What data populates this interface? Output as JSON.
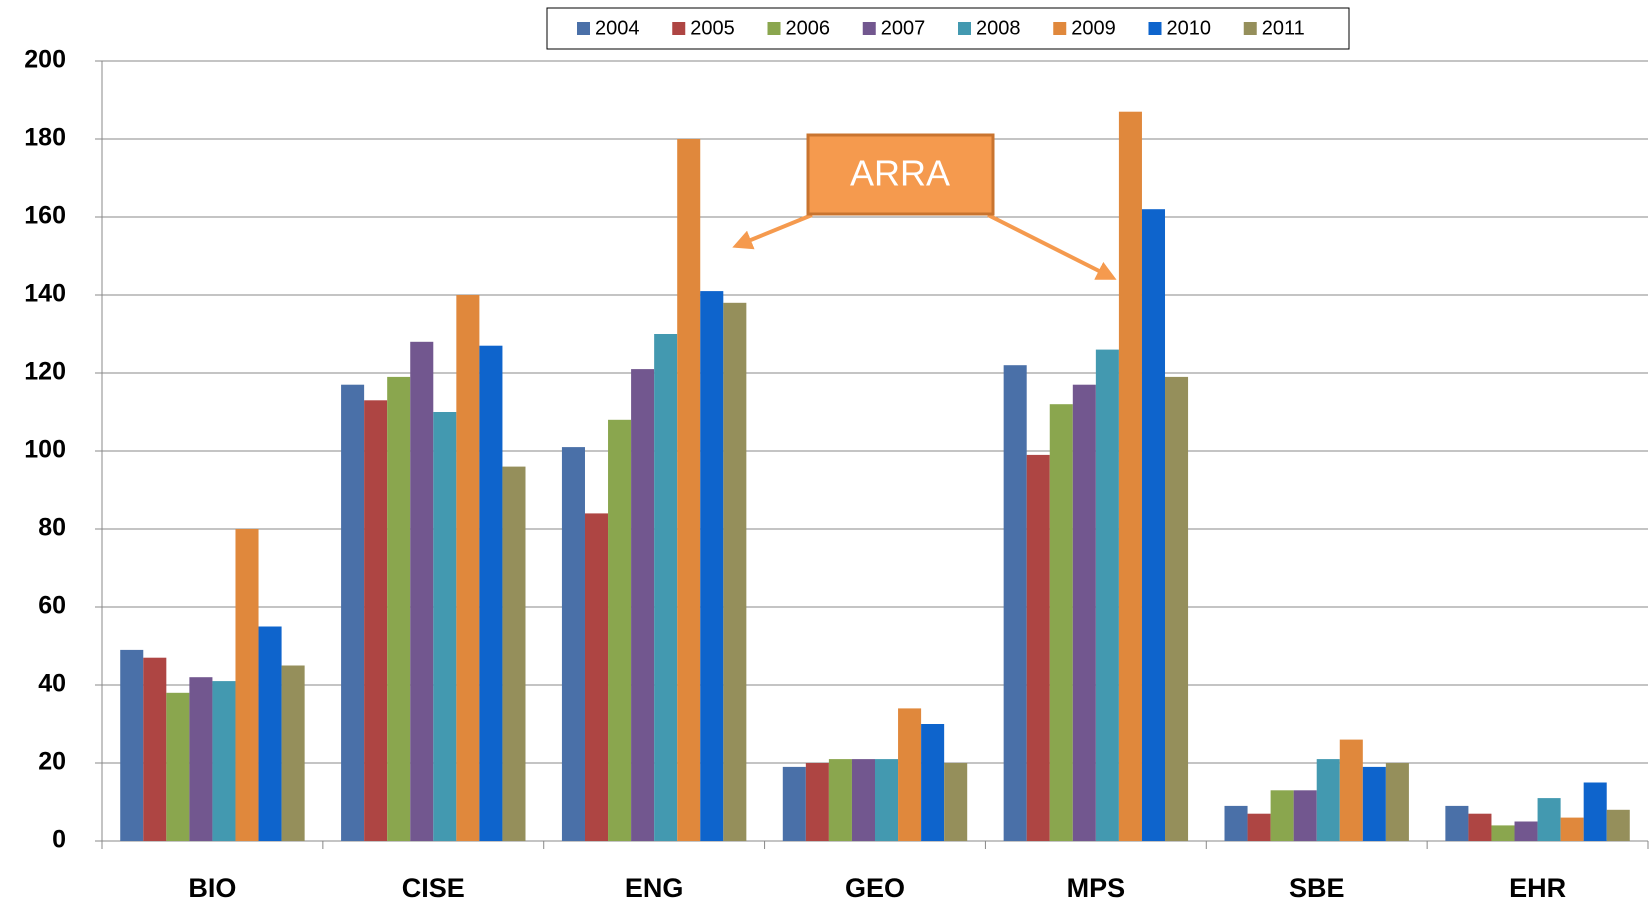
{
  "chart_data": {
    "type": "bar",
    "categories": [
      "BIO",
      "CISE",
      "ENG",
      "GEO",
      "MPS",
      "SBE",
      "EHR"
    ],
    "series": [
      {
        "name": "2004",
        "color": "#4a70a8",
        "values": [
          49,
          117,
          101,
          19,
          122,
          9,
          9
        ]
      },
      {
        "name": "2005",
        "color": "#ae4543",
        "values": [
          47,
          113,
          84,
          20,
          99,
          7,
          7
        ]
      },
      {
        "name": "2006",
        "color": "#8aa64e",
        "values": [
          38,
          119,
          108,
          21,
          112,
          13,
          4
        ]
      },
      {
        "name": "2007",
        "color": "#72578f",
        "values": [
          42,
          128,
          121,
          21,
          117,
          13,
          5
        ]
      },
      {
        "name": "2008",
        "color": "#4399b0",
        "values": [
          41,
          110,
          130,
          21,
          126,
          21,
          11
        ]
      },
      {
        "name": "2009",
        "color": "#e0883c",
        "values": [
          80,
          140,
          180,
          34,
          187,
          26,
          6
        ]
      },
      {
        "name": "2010",
        "color": "#0e64cc",
        "values": [
          55,
          127,
          141,
          30,
          162,
          19,
          15
        ]
      },
      {
        "name": "2011",
        "color": "#958f5b",
        "values": [
          45,
          96,
          138,
          20,
          119,
          20,
          8
        ]
      }
    ],
    "ylim": [
      0,
      200
    ],
    "yticks": [
      0,
      20,
      40,
      60,
      80,
      100,
      120,
      140,
      160,
      180,
      200
    ],
    "grid": true,
    "legend": "top",
    "annotation": "ARRA"
  }
}
